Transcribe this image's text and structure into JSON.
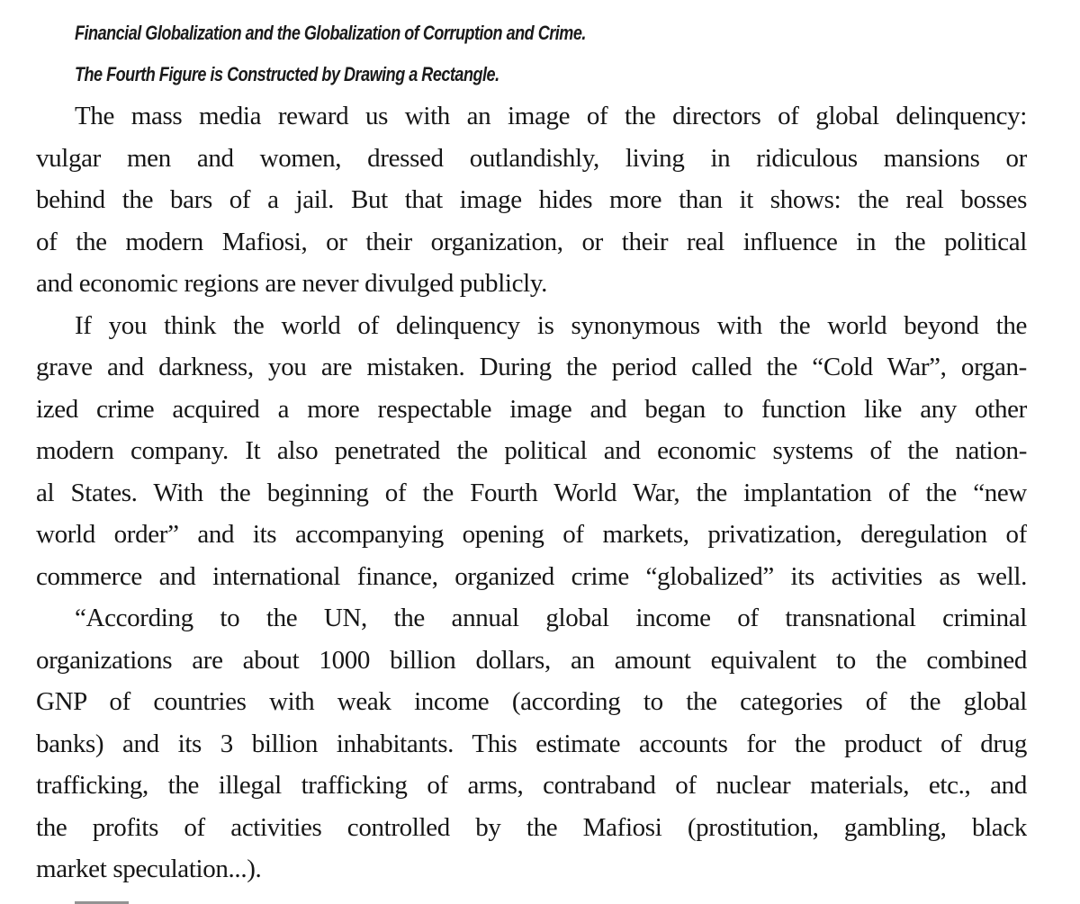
{
  "headings": [
    "Financial Globalization and the Globalization of Corruption and Crime.",
    "The Fourth Figure is Constructed by Drawing a Rectangle."
  ],
  "paragraphs": [
    {
      "lines": [
        "The mass media reward us with an image of the directors of global delinquency:",
        "vulgar men and women, dressed outlandishly, living in ridiculous mansions or",
        "behind the bars of a jail. But that image hides more than it shows: the real bosses",
        "of the modern Mafiosi, or their organization, or their real influence in the political",
        "and economic regions are never divulged publicly."
      ]
    },
    {
      "lines": [
        "If you think the world of delinquency is synonymous with the world beyond the",
        "grave and darkness, you are mistaken. During the period called the “Cold War”, organ-",
        "ized crime acquired a more respectable image and began to function like any other",
        "modern company. It also penetrated the political and economic systems of the nation-",
        "al States. With the beginning of the Fourth World War, the implantation of the “new",
        "world order” and its accompanying opening of markets, privatization, deregulation of",
        "commerce and international finance, organized crime “globalized” its activities as well."
      ]
    },
    {
      "lines": [
        "“According to the UN, the annual global income of transnational criminal",
        "organizations are about 1000 billion dollars, an amount equivalent to the combined",
        "GNP of countries with weak income (according to the categories of the global",
        "banks) and its 3 billion inhabitants. This estimate accounts for the product of drug",
        "trafficking, the illegal trafficking of arms, contraband of nuclear materials, etc., and",
        "the profits of activities controlled by the Mafiosi (prostitution, gambling, black",
        "market speculation...)."
      ]
    }
  ]
}
